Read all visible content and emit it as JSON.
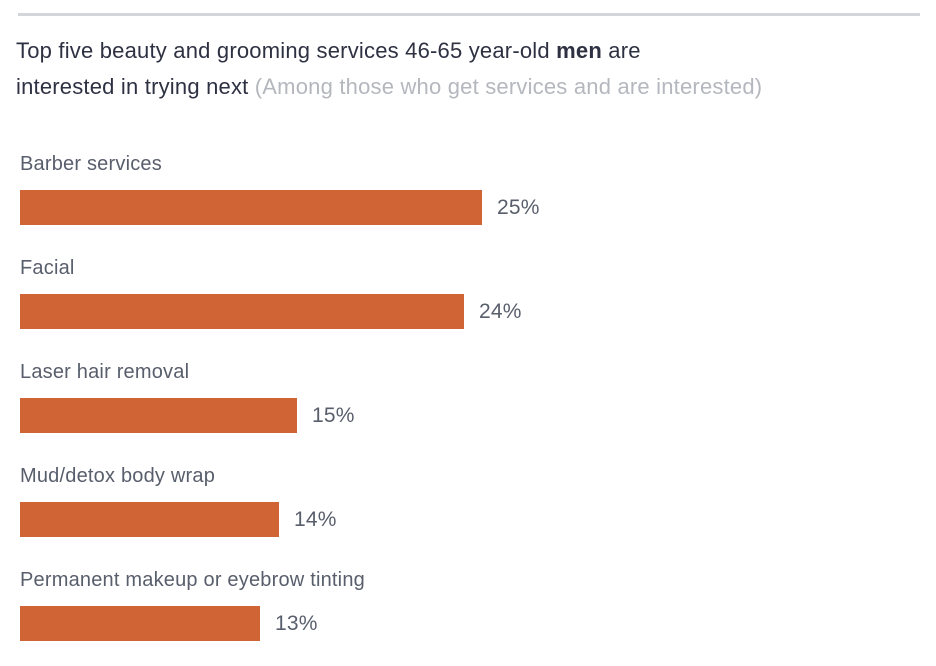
{
  "title": {
    "line1_normal": "Top five beauty and grooming services 46-65 year-old ",
    "line1_bold": "men",
    "line1_suffix": " are",
    "line2_normal": "interested in trying next ",
    "line2_muted": "(Among those who get services and are interested)"
  },
  "chart_data": {
    "type": "bar",
    "orientation": "horizontal",
    "title": "Top five beauty and grooming services 46-65 year-old men are interested in trying next",
    "subtitle": "(Among those who get services and are interested)",
    "categories": [
      "Barber services",
      "Facial",
      "Laser hair removal",
      "Mud/detox body wrap",
      "Permanent makeup or eyebrow tinting"
    ],
    "values": [
      25,
      24,
      15,
      14,
      13
    ],
    "value_suffix": "%",
    "xlim": [
      0,
      25
    ],
    "grid": false,
    "legend": "none",
    "bar_color": "#d06434",
    "category_label_color": "#585e6b",
    "value_label_color": "#585e6b",
    "title_color": "#2e3142",
    "subtitle_color": "#b4b7bd",
    "divider_color": "#d2d5da"
  }
}
